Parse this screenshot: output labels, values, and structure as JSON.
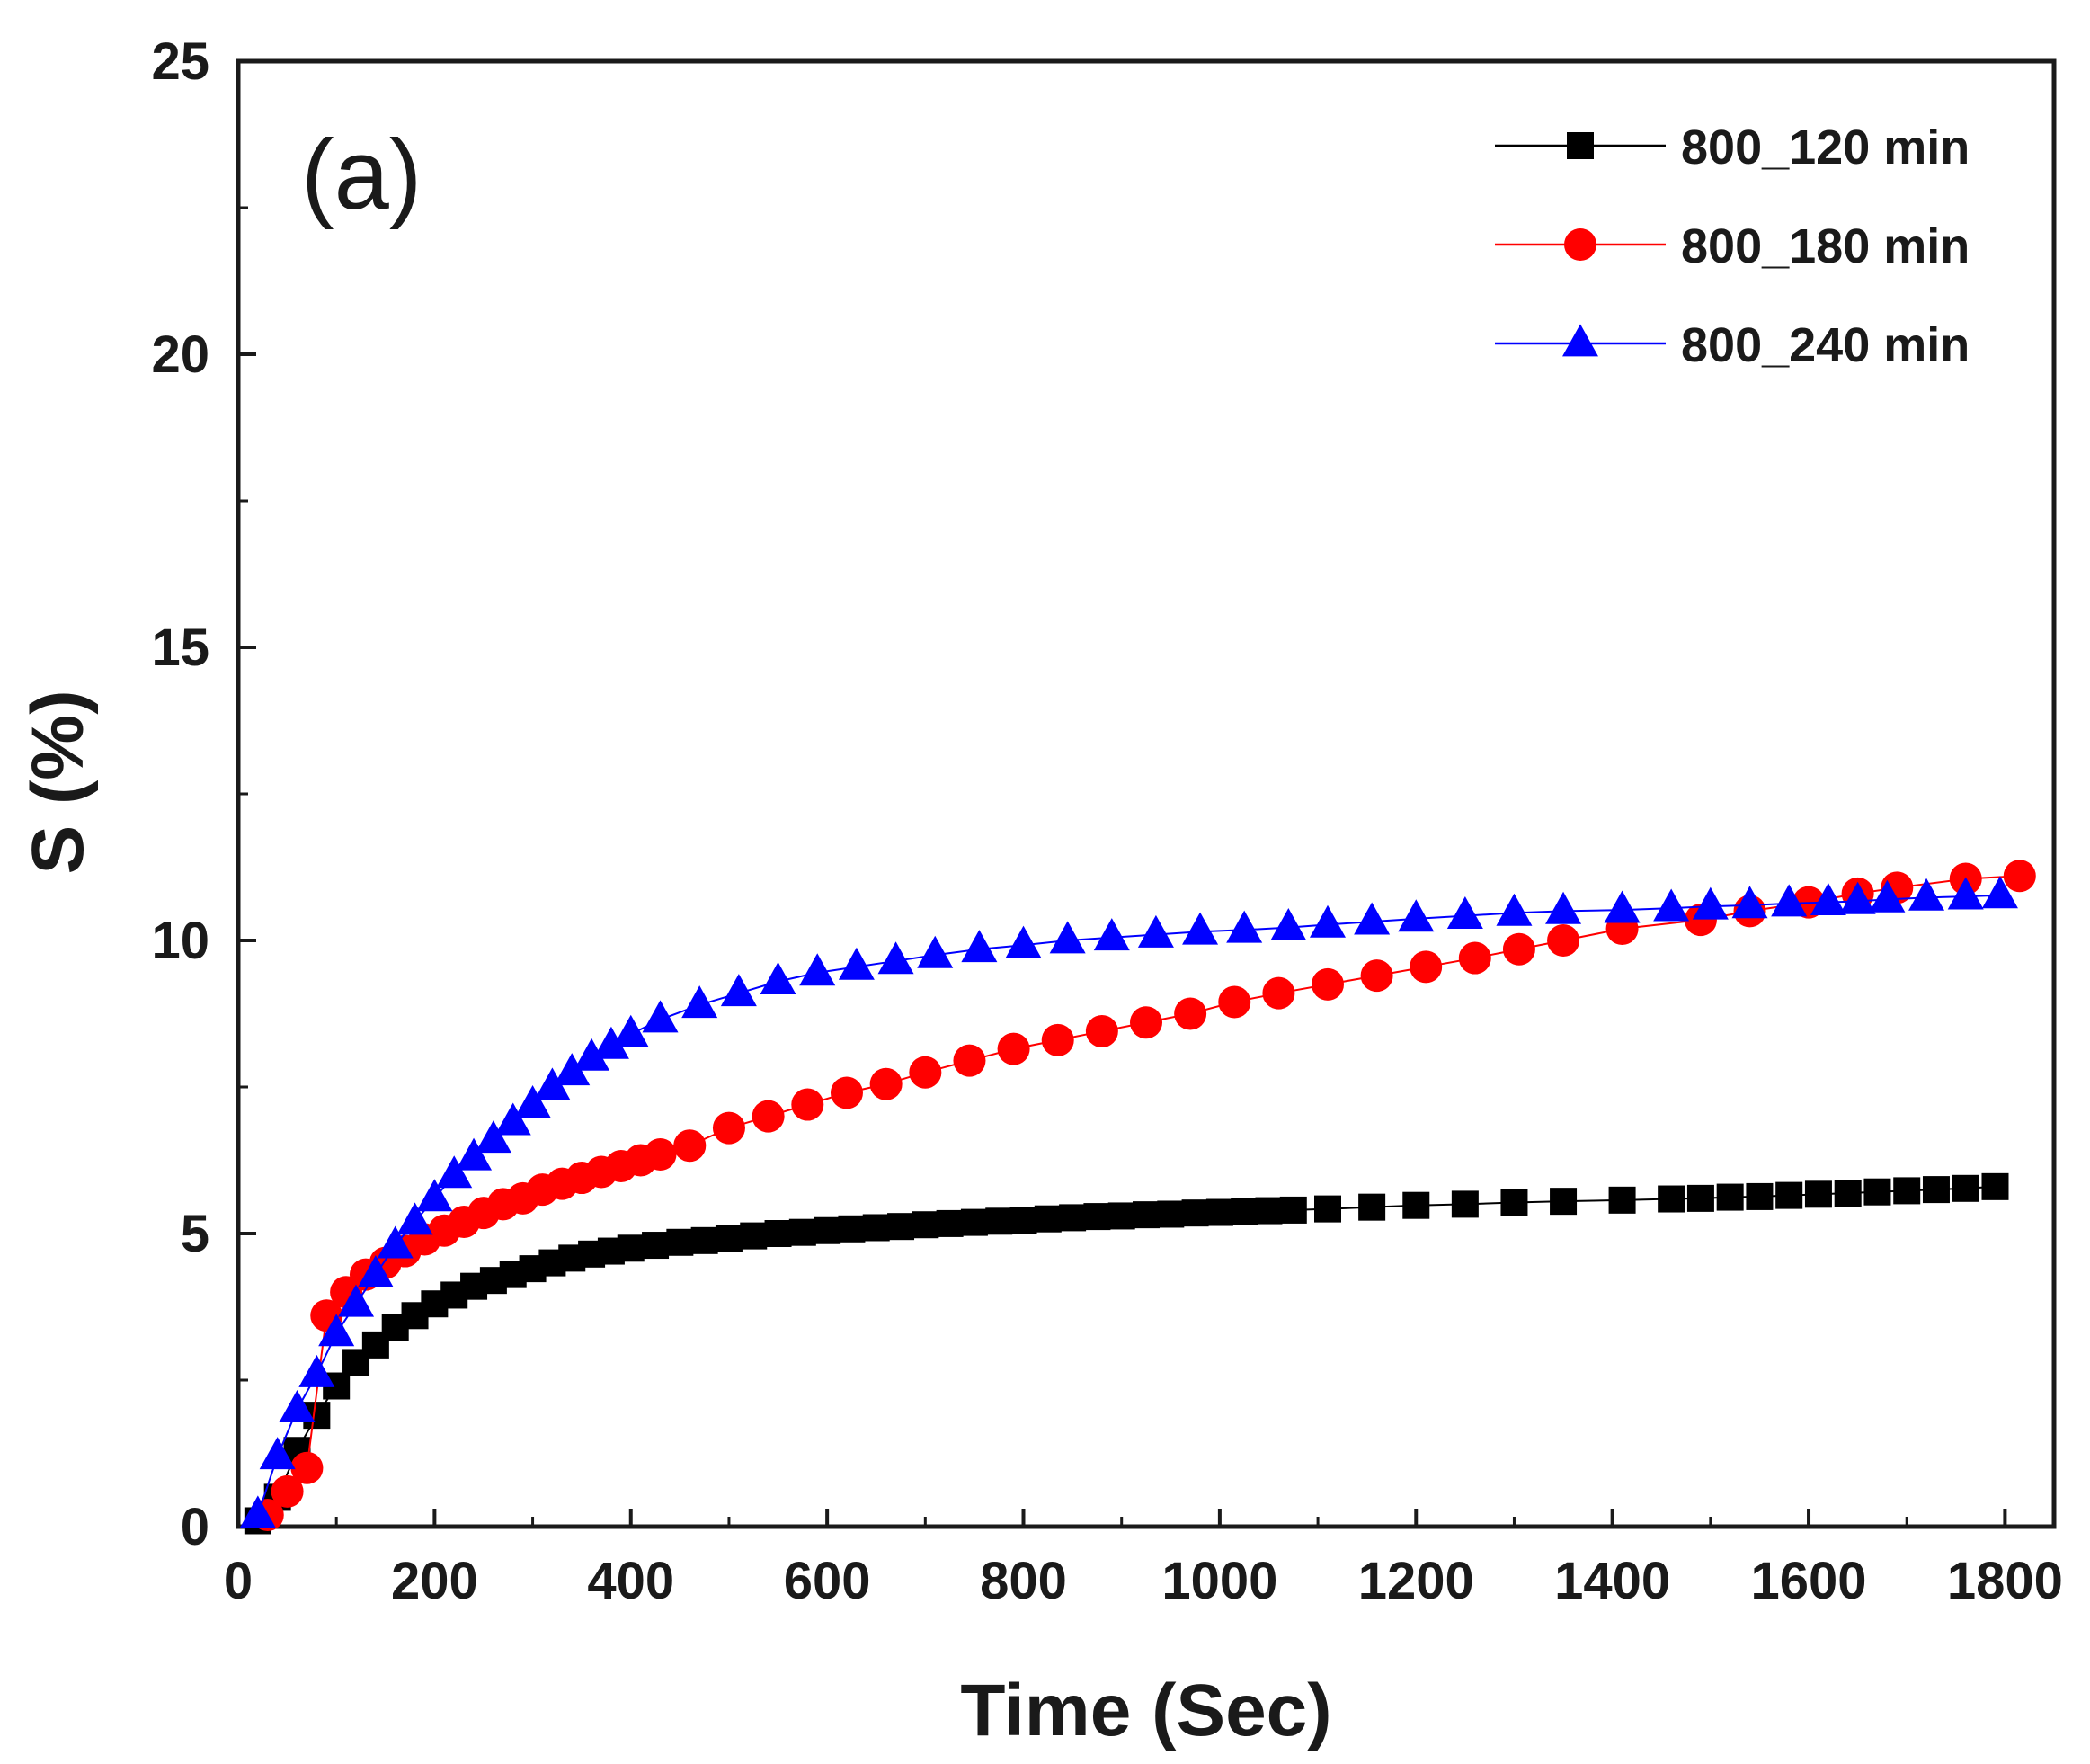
{
  "chart_data": {
    "type": "scatter",
    "panel_label": "(a)",
    "xlabel": "Time (Sec)",
    "ylabel": "S (%)",
    "xlim": [
      0,
      1850
    ],
    "ylim": [
      0,
      25
    ],
    "xticks": [
      0,
      200,
      400,
      600,
      800,
      1000,
      1200,
      1400,
      1600,
      1800
    ],
    "yticks": [
      0,
      5,
      10,
      15,
      20,
      25
    ],
    "grid": false,
    "legend_position": "top-right",
    "series": [
      {
        "name": "800_120 min",
        "color": "#000000",
        "marker": "square",
        "x": [
          20,
          40,
          60,
          80,
          100,
          120,
          140,
          160,
          180,
          200,
          220,
          240,
          260,
          280,
          300,
          320,
          340,
          360,
          380,
          400,
          425,
          450,
          475,
          500,
          525,
          550,
          575,
          600,
          625,
          650,
          675,
          700,
          725,
          750,
          775,
          800,
          825,
          850,
          875,
          900,
          925,
          950,
          975,
          1000,
          1025,
          1050,
          1075,
          1110,
          1155,
          1200,
          1250,
          1300,
          1350,
          1410,
          1460,
          1490,
          1520,
          1550,
          1580,
          1610,
          1640,
          1670,
          1700,
          1730,
          1760,
          1790
        ],
        "values": [
          0.1,
          0.5,
          1.3,
          1.9,
          2.4,
          2.8,
          3.1,
          3.4,
          3.6,
          3.8,
          3.95,
          4.1,
          4.2,
          4.3,
          4.4,
          4.5,
          4.58,
          4.65,
          4.7,
          4.75,
          4.8,
          4.85,
          4.88,
          4.92,
          4.96,
          5.0,
          5.02,
          5.05,
          5.08,
          5.1,
          5.12,
          5.15,
          5.17,
          5.19,
          5.21,
          5.23,
          5.25,
          5.27,
          5.29,
          5.3,
          5.32,
          5.33,
          5.35,
          5.36,
          5.37,
          5.39,
          5.4,
          5.42,
          5.45,
          5.48,
          5.5,
          5.53,
          5.55,
          5.57,
          5.59,
          5.6,
          5.62,
          5.63,
          5.65,
          5.67,
          5.69,
          5.71,
          5.73,
          5.75,
          5.77,
          5.8
        ]
      },
      {
        "name": "800_180 min",
        "color": "#ff0000",
        "marker": "circle",
        "x": [
          30,
          50,
          70,
          90,
          110,
          130,
          150,
          170,
          190,
          210,
          230,
          250,
          270,
          290,
          310,
          330,
          350,
          370,
          390,
          410,
          430,
          460,
          500,
          540,
          580,
          620,
          660,
          700,
          745,
          790,
          835,
          880,
          925,
          970,
          1015,
          1060,
          1110,
          1160,
          1210,
          1260,
          1305,
          1350,
          1410,
          1490,
          1540,
          1600,
          1650,
          1690,
          1760,
          1815
        ],
        "values": [
          0.2,
          0.6,
          1.0,
          3.6,
          4.0,
          4.3,
          4.5,
          4.7,
          4.9,
          5.05,
          5.2,
          5.35,
          5.5,
          5.6,
          5.75,
          5.85,
          5.95,
          6.05,
          6.15,
          6.25,
          6.35,
          6.5,
          6.8,
          7.0,
          7.2,
          7.4,
          7.55,
          7.75,
          7.95,
          8.15,
          8.3,
          8.45,
          8.6,
          8.75,
          8.95,
          9.1,
          9.25,
          9.4,
          9.55,
          9.7,
          9.85,
          10.0,
          10.2,
          10.35,
          10.5,
          10.65,
          10.8,
          10.9,
          11.05,
          11.1
        ]
      },
      {
        "name": "800_240 min",
        "color": "#0000ff",
        "marker": "triangle",
        "x": [
          20,
          40,
          60,
          80,
          100,
          120,
          140,
          160,
          180,
          200,
          220,
          240,
          260,
          280,
          300,
          320,
          340,
          360,
          380,
          400,
          430,
          470,
          510,
          550,
          590,
          630,
          670,
          710,
          755,
          800,
          845,
          890,
          935,
          980,
          1025,
          1070,
          1110,
          1155,
          1200,
          1250,
          1300,
          1350,
          1410,
          1460,
          1500,
          1540,
          1580,
          1620,
          1650,
          1680,
          1720,
          1760,
          1795
        ],
        "values": [
          0.2,
          1.2,
          2.0,
          2.6,
          3.3,
          3.8,
          4.3,
          4.8,
          5.2,
          5.6,
          6.0,
          6.3,
          6.6,
          6.9,
          7.2,
          7.5,
          7.75,
          8.0,
          8.2,
          8.4,
          8.65,
          8.9,
          9.1,
          9.3,
          9.45,
          9.55,
          9.65,
          9.75,
          9.85,
          9.92,
          10.0,
          10.05,
          10.1,
          10.15,
          10.18,
          10.22,
          10.27,
          10.32,
          10.37,
          10.42,
          10.47,
          10.5,
          10.52,
          10.55,
          10.58,
          10.6,
          10.63,
          10.65,
          10.67,
          10.7,
          10.73,
          10.75,
          10.77
        ]
      }
    ]
  }
}
